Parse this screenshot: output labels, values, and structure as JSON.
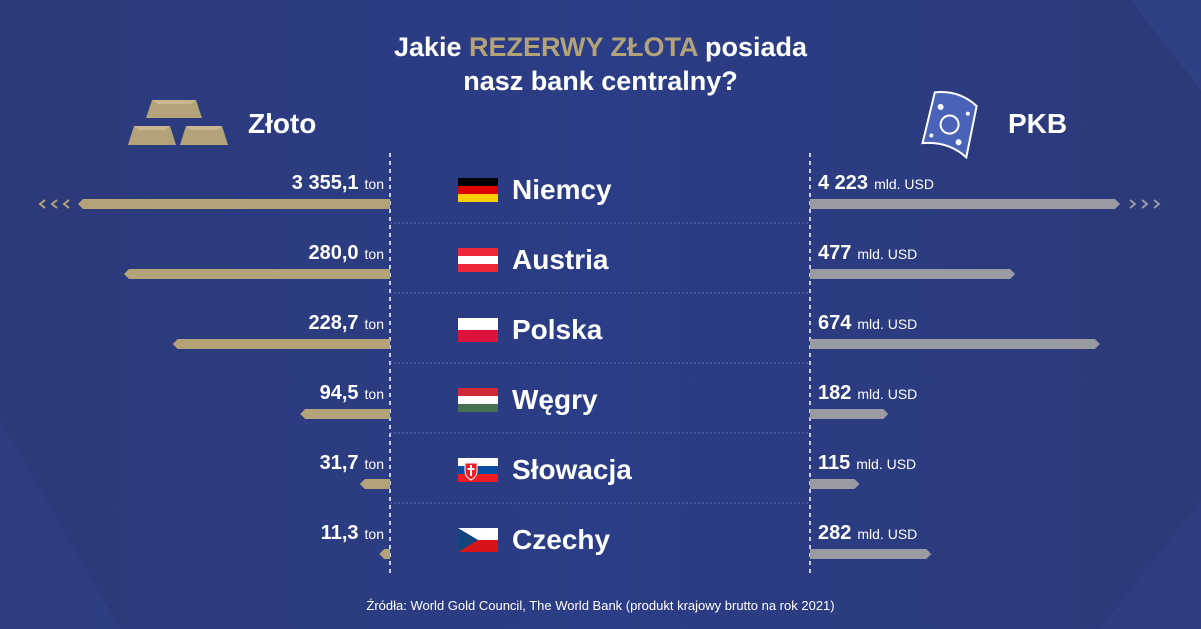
{
  "title": {
    "line1_pre": "Jakie ",
    "line1_accent": "REZERWY ZŁOTA",
    "line1_post": " posiada",
    "line2": "nasz bank centralny?"
  },
  "left_label": "Złoto",
  "right_label": "PKB",
  "source": "Źródła: World Gold Council, The World Bank (produkt krajowy brutto na rok 2021)",
  "colors": {
    "gold": "#b4a279",
    "gray": "#9a9aa2",
    "background": "#2b3b82"
  },
  "chart_data": {
    "type": "bar",
    "categories": [
      "Niemcy",
      "Austria",
      "Polska",
      "Węgry",
      "Słowacja",
      "Czechy"
    ],
    "series": [
      {
        "name": "Złoto",
        "unit": "ton",
        "values": [
          3355.1,
          280.0,
          228.7,
          94.5,
          31.7,
          11.3
        ],
        "labels": [
          "3 355,1",
          "280,0",
          "228,7",
          "94,5",
          "31,7",
          "11,3"
        ],
        "truncated_first": true
      },
      {
        "name": "PKB",
        "unit": "mld. USD",
        "values": [
          4223,
          477,
          674,
          182,
          115,
          282
        ],
        "labels": [
          "4 223",
          "477",
          "674",
          "182",
          "115",
          "282"
        ],
        "truncated_first": true
      }
    ],
    "flags": [
      "flag-germany",
      "flag-austria",
      "flag-poland",
      "flag-hungary",
      "flag-slovakia",
      "flag-czechia"
    ]
  }
}
